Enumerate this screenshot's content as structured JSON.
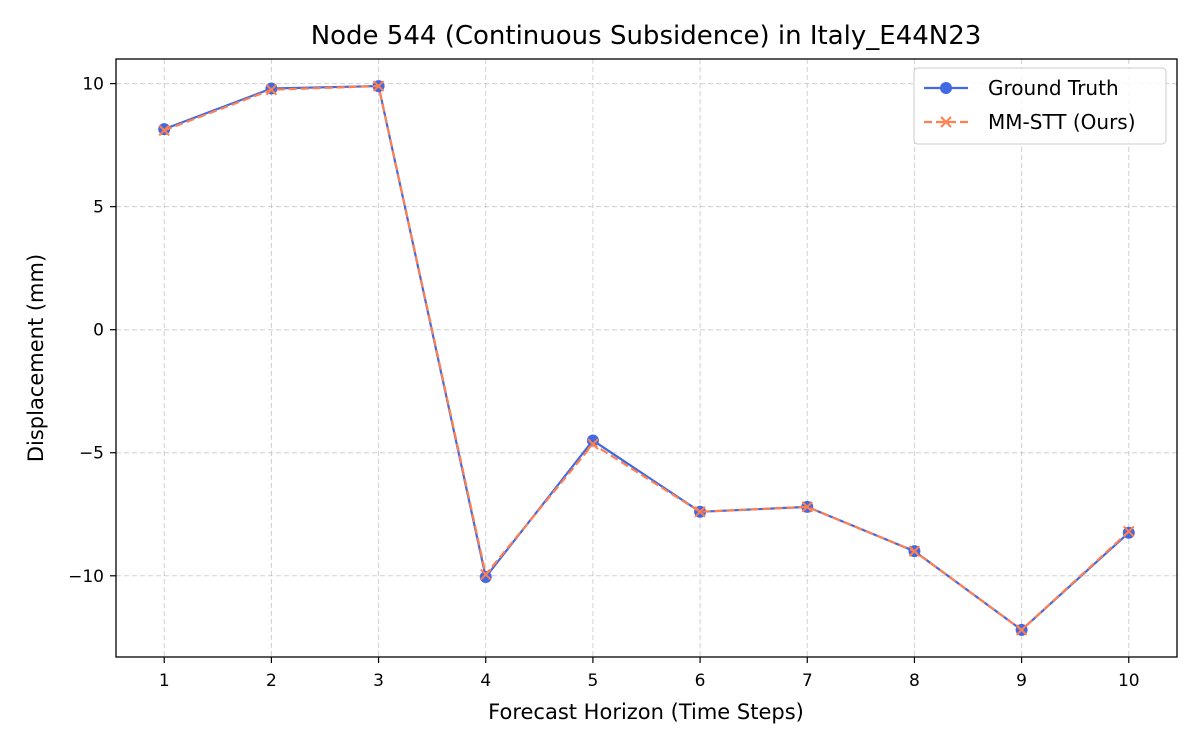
{
  "chart_data": {
    "type": "line",
    "title": "Node 544 (Continuous Subsidence) in Italy_E44N23",
    "xlabel": "Forecast Horizon (Time Steps)",
    "ylabel": "Displacement (mm)",
    "x": [
      1,
      2,
      3,
      4,
      5,
      6,
      7,
      8,
      9,
      10
    ],
    "x_ticks": [
      "1",
      "2",
      "3",
      "4",
      "5",
      "6",
      "7",
      "8",
      "9",
      "10"
    ],
    "y_ticks": [
      10,
      5,
      0,
      -5,
      -10
    ],
    "y_tick_labels": [
      "10",
      "5",
      "0",
      "−5",
      "−10"
    ],
    "xlim": [
      0.55,
      10.45
    ],
    "ylim": [
      -13.3,
      11.0
    ],
    "grid": true,
    "legend_position": "upper-right",
    "series": [
      {
        "name": "Ground Truth",
        "color": "#4169e1",
        "line_style": "solid",
        "marker": "circle",
        "values": [
          8.15,
          9.8,
          9.9,
          -10.05,
          -4.5,
          -7.4,
          -7.2,
          -9.0,
          -12.2,
          -8.25
        ]
      },
      {
        "name": "MM-STT (Ours)",
        "color": "#ff7f50",
        "line_style": "dashed",
        "marker": "x",
        "values": [
          8.1,
          9.75,
          9.9,
          -9.95,
          -4.65,
          -7.4,
          -7.2,
          -9.0,
          -12.2,
          -8.2
        ]
      }
    ]
  }
}
